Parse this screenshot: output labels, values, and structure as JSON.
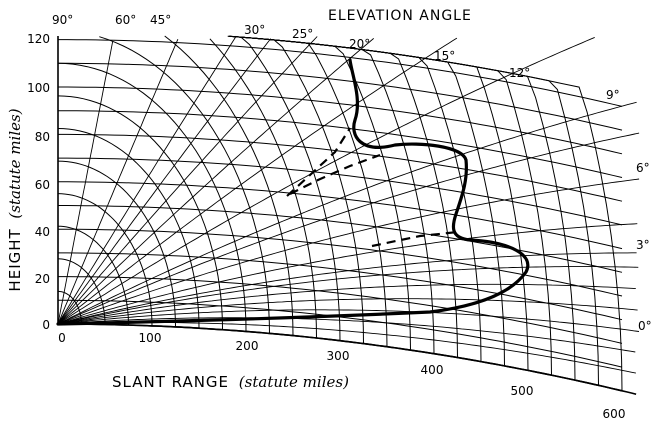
{
  "diagram": {
    "title": "ELEVATION ANGLE",
    "x_axis_label": {
      "main": "SLANT RANGE",
      "unit": "(statute miles)"
    },
    "y_axis_label": {
      "main": "HEIGHT",
      "unit": "(statute miles)"
    },
    "x_tick_labels": [
      "0",
      "100",
      "200",
      "300",
      "400",
      "500",
      "600"
    ],
    "y_tick_labels": [
      "0",
      "20",
      "40",
      "60",
      "80",
      "100",
      "120"
    ],
    "elevation_labels": [
      "90°",
      "60°",
      "45°",
      "30°",
      "25°",
      "20°",
      "15°",
      "12°",
      "9°",
      "6°",
      "3°",
      "0°"
    ]
  },
  "chart_data": {
    "type": "coverage-diagram",
    "x_axis": "slant range",
    "y_axis": "height",
    "x_ticks": [
      0,
      100,
      200,
      300,
      400,
      500,
      600
    ],
    "y_ticks": [
      0,
      20,
      40,
      60,
      80,
      100,
      120
    ],
    "elevation_angles_deg": [
      90,
      60,
      45,
      30,
      25,
      20,
      15,
      12,
      9,
      6,
      3,
      0
    ],
    "grid": true
  }
}
